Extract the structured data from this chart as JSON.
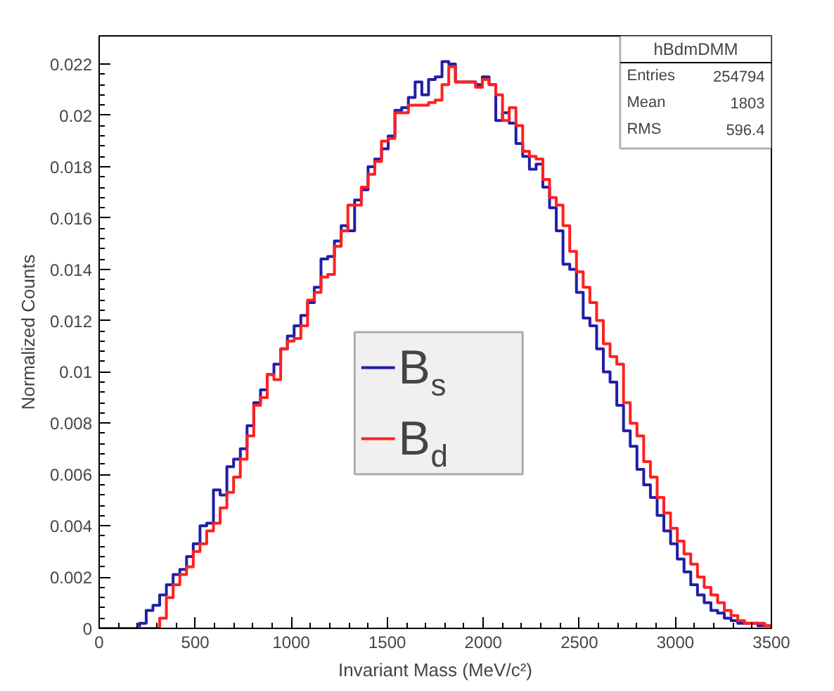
{
  "chart_data": {
    "type": "histogram",
    "xlabel": "Invariant Mass (MeV/c²)",
    "ylabel": "Normalized Counts",
    "bins": [
      0,
      35,
      70,
      105,
      140,
      175,
      210,
      245,
      280,
      315,
      350,
      385,
      420,
      455,
      490,
      525,
      560,
      595,
      630,
      665,
      700,
      735,
      770,
      805,
      840,
      875,
      910,
      945,
      980,
      1015,
      1050,
      1085,
      1120,
      1155,
      1190,
      1225,
      1260,
      1295,
      1330,
      1365,
      1400,
      1435,
      1470,
      1505,
      1540,
      1575,
      1610,
      1645,
      1680,
      1715,
      1750,
      1785,
      1820,
      1855,
      1890,
      1925,
      1960,
      1995,
      2030,
      2065,
      2100,
      2135,
      2170,
      2205,
      2240,
      2275,
      2310,
      2345,
      2380,
      2415,
      2450,
      2485,
      2520,
      2555,
      2590,
      2625,
      2660,
      2695,
      2730,
      2765,
      2800,
      2835,
      2870,
      2905,
      2940,
      2975,
      3010,
      3045,
      3080,
      3115,
      3150,
      3185,
      3220,
      3255,
      3290,
      3325,
      3360,
      3395,
      3430,
      3465,
      3500
    ],
    "series": [
      {
        "name": "B$_{s}$",
        "color": "#1f1fa8",
        "values": [
          0,
          0,
          0,
          0,
          0,
          0,
          0.0002,
          0.0007,
          0.0009,
          0.0013,
          0.0017,
          0.0021,
          0.0023,
          0.0028,
          0.0033,
          0.004,
          0.0041,
          0.0054,
          0.0052,
          0.0063,
          0.0066,
          0.007,
          0.0079,
          0.0088,
          0.0093,
          0.0099,
          0.0103,
          0.0109,
          0.0114,
          0.0118,
          0.0122,
          0.0127,
          0.0133,
          0.0144,
          0.0145,
          0.0151,
          0.0157,
          0.0155,
          0.0167,
          0.0171,
          0.018,
          0.0183,
          0.0187,
          0.0192,
          0.0202,
          0.0203,
          0.0207,
          0.0213,
          0.0208,
          0.0214,
          0.0215,
          0.0221,
          0.022,
          0.0213,
          0.0213,
          0.0213,
          0.0212,
          0.0215,
          0.0212,
          0.0198,
          0.0201,
          0.0197,
          0.0189,
          0.0184,
          0.0179,
          0.0181,
          0.0172,
          0.0164,
          0.0155,
          0.0142,
          0.014,
          0.0131,
          0.0121,
          0.0118,
          0.0109,
          0.01,
          0.0096,
          0.0087,
          0.0077,
          0.0071,
          0.0062,
          0.0056,
          0.0051,
          0.0044,
          0.0038,
          0.0033,
          0.0027,
          0.0022,
          0.0017,
          0.0013,
          0.001,
          0.0007,
          0.0006,
          0.0004,
          0.0003,
          0.0002,
          0.0002,
          0.0002,
          0.0001,
          0.0001
        ]
      },
      {
        "name": "B$_{d}$",
        "color": "#ff2020",
        "values": [
          0,
          0,
          0,
          0,
          0,
          0,
          0,
          0,
          0,
          0.0004,
          0.0012,
          0.0017,
          0.0021,
          0.0024,
          0.003,
          0.0033,
          0.0038,
          0.0041,
          0.0047,
          0.0053,
          0.0059,
          0.0066,
          0.0075,
          0.0087,
          0.009,
          0.0099,
          0.0097,
          0.0109,
          0.0112,
          0.0113,
          0.0118,
          0.0128,
          0.0131,
          0.0137,
          0.0138,
          0.0149,
          0.0155,
          0.0165,
          0.0165,
          0.0172,
          0.0177,
          0.0182,
          0.019,
          0.0191,
          0.0201,
          0.0201,
          0.0204,
          0.0204,
          0.0204,
          0.0205,
          0.0206,
          0.0212,
          0.0219,
          0.0213,
          0.0213,
          0.0213,
          0.0211,
          0.0214,
          0.0212,
          0.0208,
          0.0198,
          0.0203,
          0.0196,
          0.0186,
          0.0184,
          0.0183,
          0.0175,
          0.0168,
          0.0165,
          0.0157,
          0.0147,
          0.0139,
          0.0133,
          0.0127,
          0.012,
          0.0111,
          0.0106,
          0.0103,
          0.0088,
          0.008,
          0.0075,
          0.0065,
          0.0059,
          0.0051,
          0.0045,
          0.0039,
          0.0034,
          0.0029,
          0.0025,
          0.002,
          0.0016,
          0.0013,
          0.001,
          0.0007,
          0.0005,
          0.0003,
          0.0002,
          0.0002,
          0.0002,
          0.0001
        ]
      }
    ],
    "xlim": [
      0,
      3500
    ],
    "ylim": [
      0,
      0.0231
    ],
    "xticks": [
      0,
      500,
      1000,
      1500,
      2000,
      2500,
      3000,
      3500
    ],
    "yticks": [
      0,
      0.002,
      0.004,
      0.006,
      0.008,
      0.01,
      0.012,
      0.014,
      0.016,
      0.018,
      0.02,
      0.022
    ],
    "legend": "center",
    "annotations": [
      "hBdmDMM",
      "Entries 254794",
      "Mean 1803",
      "RMS 596.4"
    ]
  }
}
